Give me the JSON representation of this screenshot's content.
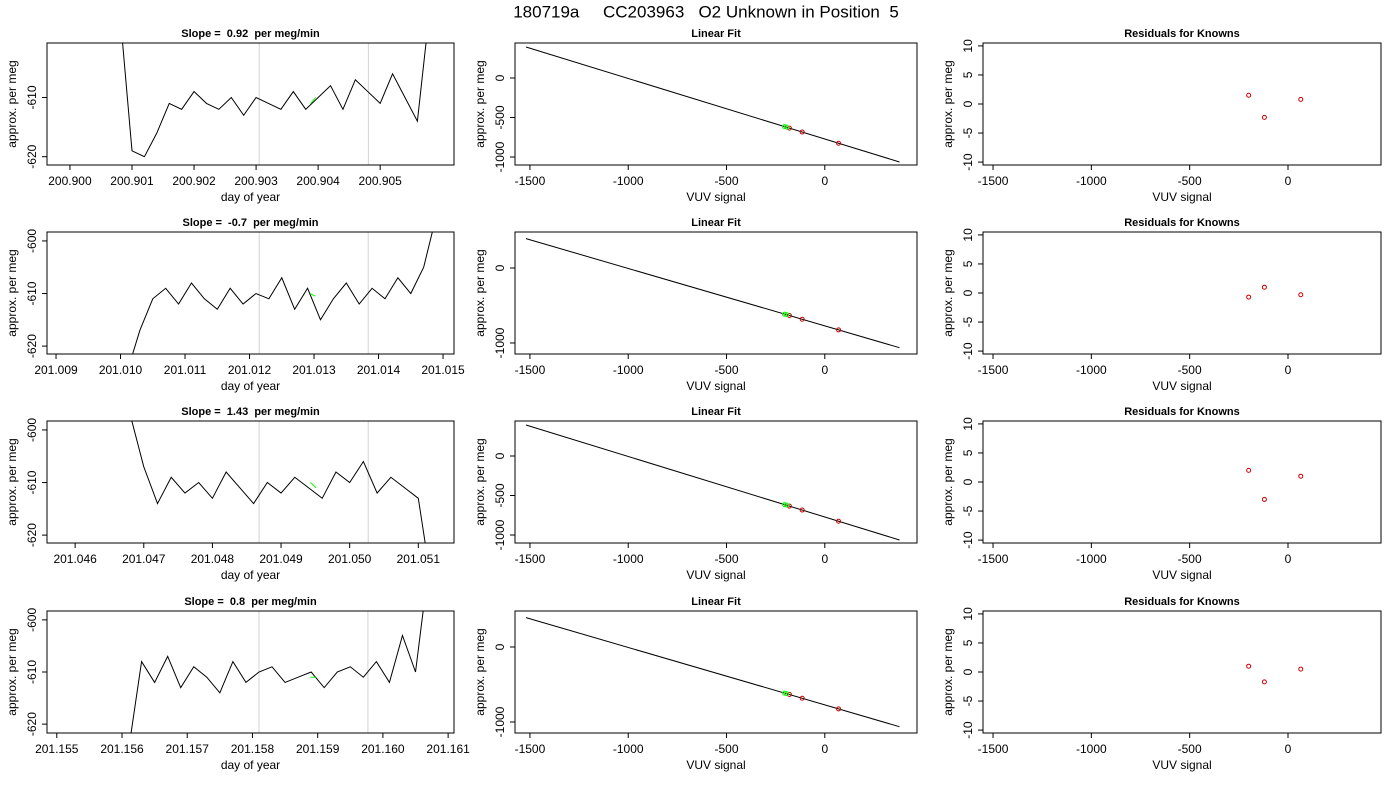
{
  "title": "180719a     CC203963   O2 Unknown in Position  5",
  "chart_data": [
    {
      "type": "line",
      "title": "Slope =  0.92  per meg/min",
      "xlabel": "day of year",
      "ylabel": "approx. per meg",
      "xlim": [
        200.89963,
        200.90619
      ],
      "ylim": [
        -621.4,
        -600.8
      ],
      "xticks": [
        {
          "value": 200.9,
          "label": "200.900"
        },
        200.901,
        200.902,
        200.903,
        200.904,
        200.905
      ],
      "yticks": [
        -620,
        -610
      ],
      "vlines": {
        "color": "#d3d3d3",
        "x": [
          200.90305,
          200.90481
        ]
      },
      "series": [
        {
          "style": "line",
          "color": "#000000",
          "x": [
            200.9008,
            200.901,
            200.9012,
            200.9014,
            200.9016,
            200.9018,
            200.902,
            200.9022,
            200.9024,
            200.9026,
            200.9028,
            200.903,
            200.9032,
            200.9034,
            200.9036,
            200.9038,
            200.904,
            200.9042,
            200.9044,
            200.9046,
            200.9048,
            200.905,
            200.9052,
            200.9054,
            200.9056,
            200.9058
          ],
          "values": [
            -595,
            -619,
            -620,
            -616,
            -611,
            -612,
            -609,
            -611,
            -612,
            -610,
            -613,
            -610,
            -611,
            -612,
            -609,
            -612,
            -610,
            -608,
            -612,
            -607,
            -609,
            -611,
            -606,
            -610,
            -614,
            -595
          ]
        },
        {
          "style": "line",
          "color": "#00ff00",
          "x": [
            200.90388,
            200.90396
          ],
          "values": [
            -611,
            -610
          ]
        }
      ]
    },
    {
      "type": "scatter",
      "title": "Linear Fit",
      "xlabel": "VUV signal",
      "ylabel": "approx. per meg",
      "xlim": [
        -1576,
        469
      ],
      "ylim": [
        -1101,
        443
      ],
      "xticks": [
        -1500,
        -1000,
        -500,
        0
      ],
      "yticks": [
        -1000,
        -500,
        0
      ],
      "series": [
        {
          "style": "line",
          "color": "#000000",
          "x": [
            -1520,
            380
          ],
          "values": [
            392,
            -1063
          ]
        },
        {
          "style": "points",
          "color": "#cc0000",
          "x": [
            -180,
            -115,
            70
          ],
          "values": [
            -634,
            -684,
            -826
          ]
        },
        {
          "style": "points",
          "color": "#00ff00",
          "x": [
            -205,
            -195
          ],
          "values": [
            -615,
            -622
          ]
        }
      ]
    },
    {
      "type": "scatter",
      "title": "Residuals for Knowns",
      "xlabel": "VUV signal",
      "ylabel": "approx. per meg",
      "xlim": [
        -1551,
        473
      ],
      "ylim": [
        -10.5,
        10.5
      ],
      "xticks": [
        -1500,
        -1000,
        -500,
        0
      ],
      "yticks": [
        -10,
        -5,
        0,
        5,
        10
      ],
      "series": [
        {
          "style": "points",
          "color": "#cc0000",
          "x": [
            -200,
            -120,
            65
          ],
          "values": [
            1.5,
            -2.3,
            0.8
          ]
        }
      ]
    },
    {
      "type": "line",
      "title": "Slope =  -0.7  per meg/min",
      "xlabel": "day of year",
      "ylabel": "approx. per meg",
      "xlim": [
        201.00886,
        201.01517
      ],
      "ylim": [
        -621.5,
        -598.3
      ],
      "xticks": [
        201.009,
        {
          "value": 201.01,
          "label": "201.010"
        },
        201.011,
        201.012,
        201.013,
        201.014,
        201.015
      ],
      "yticks": [
        -620,
        -610,
        -600
      ],
      "vlines": {
        "color": "#d3d3d3",
        "x": [
          201.01215,
          201.01384
        ]
      },
      "series": [
        {
          "style": "line",
          "color": "#000000",
          "x": [
            201.0101,
            201.0103,
            201.0105,
            201.0107,
            201.0109,
            201.0111,
            201.0113,
            201.0115,
            201.0117,
            201.0119,
            201.0121,
            201.0123,
            201.0125,
            201.0127,
            201.0129,
            201.0131,
            201.0133,
            201.0135,
            201.0137,
            201.0139,
            201.0141,
            201.0143,
            201.0145,
            201.0147,
            201.0149
          ],
          "values": [
            -625,
            -617,
            -611,
            -609,
            -612,
            -608,
            -611,
            -613,
            -609,
            -612,
            -610,
            -611,
            -607,
            -613,
            -609,
            -615,
            -611,
            -608,
            -612,
            -609,
            -611,
            -607,
            -610,
            -605,
            -595
          ]
        },
        {
          "style": "line",
          "color": "#00ff00",
          "x": [
            201.01294,
            201.01302
          ],
          "values": [
            -610,
            -610.5
          ]
        }
      ]
    },
    {
      "type": "scatter",
      "title": "Linear Fit",
      "xlabel": "VUV signal",
      "ylabel": "approx. per meg",
      "xlim": [
        -1576,
        469
      ],
      "ylim": [
        -1147,
        480
      ],
      "xticks": [
        -1500,
        -1000,
        -500,
        0
      ],
      "yticks": [
        -1000,
        0
      ],
      "series": [
        {
          "style": "line",
          "color": "#000000",
          "x": [
            -1520,
            380
          ],
          "values": [
            392,
            -1063
          ]
        },
        {
          "style": "points",
          "color": "#cc0000",
          "x": [
            -180,
            -115,
            70
          ],
          "values": [
            -634,
            -684,
            -826
          ]
        },
        {
          "style": "points",
          "color": "#00ff00",
          "x": [
            -205,
            -195
          ],
          "values": [
            -615,
            -622
          ]
        }
      ]
    },
    {
      "type": "scatter",
      "title": "Residuals for Knowns",
      "xlabel": "VUV signal",
      "ylabel": "approx. per meg",
      "xlim": [
        -1551,
        473
      ],
      "ylim": [
        -10.5,
        10.5
      ],
      "xticks": [
        -1500,
        -1000,
        -500,
        0
      ],
      "yticks": [
        -10,
        -5,
        0,
        5,
        10
      ],
      "series": [
        {
          "style": "points",
          "color": "#cc0000",
          "x": [
            -200,
            -120,
            65
          ],
          "values": [
            -0.7,
            1,
            -0.3
          ]
        }
      ]
    },
    {
      "type": "line",
      "title": "Slope =  1.43  per meg/min",
      "xlabel": "day of year",
      "ylabel": "approx. per meg",
      "xlim": [
        201.04559,
        201.05152
      ],
      "ylim": [
        -621.5,
        -598.3
      ],
      "xticks": [
        201.046,
        201.047,
        201.048,
        201.049,
        {
          "value": 201.05,
          "label": "201.050"
        },
        201.051
      ],
      "yticks": [
        -620,
        -610,
        -600
      ],
      "vlines": {
        "color": "#d3d3d3",
        "x": [
          201.04868,
          201.05027
        ]
      },
      "series": [
        {
          "style": "line",
          "color": "#000000",
          "x": [
            201.0468,
            201.047,
            201.0472,
            201.0474,
            201.0476,
            201.0478,
            201.048,
            201.0482,
            201.0484,
            201.0486,
            201.0488,
            201.049,
            201.0492,
            201.0494,
            201.0496,
            201.0498,
            201.05,
            201.0502,
            201.0504,
            201.0506,
            201.0508,
            201.051,
            201.0512
          ],
          "values": [
            -597,
            -607,
            -614,
            -609,
            -612,
            -610,
            -613,
            -608,
            -611,
            -614,
            -610,
            -612,
            -609,
            -611,
            -613,
            -608,
            -610,
            -606,
            -612,
            -609,
            -611,
            -613,
            -630
          ]
        },
        {
          "style": "line",
          "color": "#00ff00",
          "x": [
            201.04943,
            201.04951
          ],
          "values": [
            -610,
            -611
          ]
        }
      ]
    },
    {
      "type": "scatter",
      "title": "Linear Fit",
      "xlabel": "VUV signal",
      "ylabel": "approx. per meg",
      "xlim": [
        -1576,
        469
      ],
      "ylim": [
        -1101,
        443
      ],
      "xticks": [
        -1500,
        -1000,
        -500,
        0
      ],
      "yticks": [
        -1000,
        -500,
        0
      ],
      "series": [
        {
          "style": "line",
          "color": "#000000",
          "x": [
            -1520,
            380
          ],
          "values": [
            392,
            -1063
          ]
        },
        {
          "style": "points",
          "color": "#cc0000",
          "x": [
            -180,
            -115,
            70
          ],
          "values": [
            -634,
            -684,
            -826
          ]
        },
        {
          "style": "points",
          "color": "#00ff00",
          "x": [
            -205,
            -195
          ],
          "values": [
            -615,
            -622
          ]
        }
      ]
    },
    {
      "type": "scatter",
      "title": "Residuals for Knowns",
      "xlabel": "VUV signal",
      "ylabel": "approx. per meg",
      "xlim": [
        -1551,
        473
      ],
      "ylim": [
        -10.5,
        10.5
      ],
      "xticks": [
        -1500,
        -1000,
        -500,
        0
      ],
      "yticks": [
        -10,
        -5,
        0,
        5,
        10
      ],
      "series": [
        {
          "style": "points",
          "color": "#cc0000",
          "x": [
            -200,
            -120,
            65
          ],
          "values": [
            2,
            -3,
            1
          ]
        }
      ]
    },
    {
      "type": "line",
      "title": "Slope =  0.8  per meg/min",
      "xlabel": "day of year",
      "ylabel": "approx. per meg",
      "xlim": [
        201.15485,
        201.16109
      ],
      "ylim": [
        -621.7,
        -598.3
      ],
      "xticks": [
        201.155,
        201.156,
        201.157,
        201.158,
        201.159,
        {
          "value": 201.16,
          "label": "201.160"
        },
        201.161
      ],
      "yticks": [
        -620,
        -610,
        -600
      ],
      "vlines": {
        "color": "#d3d3d3",
        "x": [
          201.1581,
          201.15977
        ]
      },
      "series": [
        {
          "style": "line",
          "color": "#000000",
          "x": [
            201.1561,
            201.1563,
            201.1565,
            201.1567,
            201.1569,
            201.1571,
            201.1573,
            201.1575,
            201.1577,
            201.1579,
            201.1581,
            201.1583,
            201.1585,
            201.1587,
            201.1589,
            201.1591,
            201.1593,
            201.1595,
            201.1597,
            201.1599,
            201.1601,
            201.1603,
            201.1605,
            201.1607
          ],
          "values": [
            -625,
            -608,
            -612,
            -607,
            -613,
            -609,
            -611,
            -614,
            -608,
            -612,
            -610,
            -609,
            -612,
            -611,
            -610,
            -613,
            -610,
            -609,
            -611,
            -608,
            -612,
            -603,
            -610,
            -590
          ]
        },
        {
          "style": "line",
          "color": "#00ff00",
          "x": [
            201.15889,
            201.15897
          ],
          "values": [
            -611,
            -611
          ]
        }
      ]
    },
    {
      "type": "scatter",
      "title": "Linear Fit",
      "xlabel": "VUV signal",
      "ylabel": "approx. per meg",
      "xlim": [
        -1576,
        469
      ],
      "ylim": [
        -1147,
        480
      ],
      "xticks": [
        -1500,
        -1000,
        -500,
        0
      ],
      "yticks": [
        -1000,
        0
      ],
      "series": [
        {
          "style": "line",
          "color": "#000000",
          "x": [
            -1520,
            380
          ],
          "values": [
            392,
            -1063
          ]
        },
        {
          "style": "points",
          "color": "#cc0000",
          "x": [
            -180,
            -115,
            70
          ],
          "values": [
            -634,
            -684,
            -826
          ]
        },
        {
          "style": "points",
          "color": "#00ff00",
          "x": [
            -205,
            -195
          ],
          "values": [
            -615,
            -622
          ]
        }
      ]
    },
    {
      "type": "scatter",
      "title": "Residuals for Knowns",
      "xlabel": "VUV signal",
      "ylabel": "approx. per meg",
      "xlim": [
        -1551,
        473
      ],
      "ylim": [
        -10.5,
        10.5
      ],
      "xticks": [
        -1500,
        -1000,
        -500,
        0
      ],
      "yticks": [
        -10,
        -5,
        0,
        5,
        10
      ],
      "series": [
        {
          "style": "points",
          "color": "#cc0000",
          "x": [
            -200,
            -120,
            65
          ],
          "values": [
            1,
            -1.7,
            0.5
          ]
        }
      ]
    }
  ]
}
